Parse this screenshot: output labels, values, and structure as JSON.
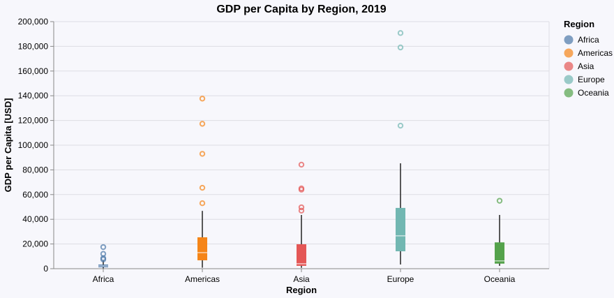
{
  "chart_data": {
    "type": "boxplot",
    "title": "GDP per Capita by Region, 2019",
    "xlabel": "Region",
    "ylabel": "GDP per Capita [USD]",
    "ylim": [
      0,
      200000
    ],
    "yticks": [
      0,
      20000,
      40000,
      60000,
      80000,
      100000,
      120000,
      140000,
      160000,
      180000,
      200000
    ],
    "ytick_labels": [
      "0",
      "20,000",
      "40,000",
      "60,000",
      "80,000",
      "100,000",
      "120,000",
      "140,000",
      "160,000",
      "180,000",
      "200,000"
    ],
    "grid": true,
    "categories": [
      "Africa",
      "Americas",
      "Asia",
      "Europe",
      "Oceania"
    ],
    "legend": {
      "title": "Region",
      "placement": "right",
      "entries": [
        "Africa",
        "Americas",
        "Asia",
        "Europe",
        "Oceania"
      ]
    },
    "colors": {
      "Africa": "#4c78a8",
      "Americas": "#f58518",
      "Asia": "#e45756",
      "Europe": "#72b7b2",
      "Oceania": "#54a24b"
    },
    "series": [
      {
        "name": "Africa",
        "min": 300,
        "q1": 1200,
        "median": 2200,
        "q3": 3300,
        "max": 6500,
        "outliers": [
          7500,
          8500,
          12000,
          17500
        ]
      },
      {
        "name": "Americas",
        "min": 800,
        "q1": 6800,
        "median": 13000,
        "q3": 25400,
        "max": 46800,
        "outliers": [
          53000,
          65500,
          93000,
          117300,
          137700
        ]
      },
      {
        "name": "Asia",
        "min": 700,
        "q1": 2300,
        "median": 4000,
        "q3": 19800,
        "max": 43500,
        "outliers": [
          47000,
          49700,
          64000,
          65000,
          84200
        ]
      },
      {
        "name": "Europe",
        "min": 3400,
        "q1": 14100,
        "median": 26600,
        "q3": 49200,
        "max": 85300,
        "outliers": [
          115800,
          179100,
          190800
        ]
      },
      {
        "name": "Oceania",
        "min": 2300,
        "q1": 4100,
        "median": 6300,
        "q3": 21300,
        "max": 43500,
        "outliers": [
          55000
        ]
      }
    ]
  }
}
